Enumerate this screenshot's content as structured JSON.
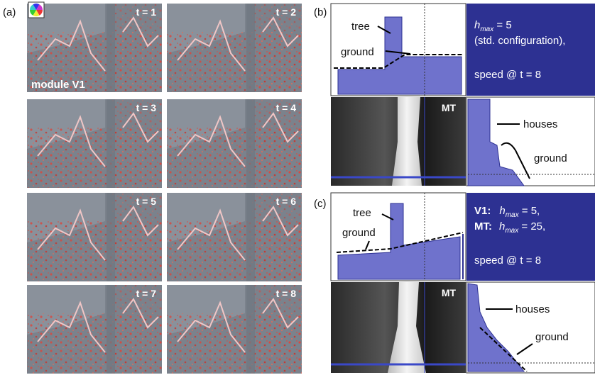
{
  "panel_a": {
    "label": "(a)",
    "frames": [
      "t = 1",
      "t = 2",
      "t = 3",
      "t = 4",
      "t = 5",
      "t = 6",
      "t = 7",
      "t = 8"
    ],
    "module_label": "module V1"
  },
  "panel_b": {
    "label": "(b)",
    "tree": "tree",
    "ground": "ground",
    "info": {
      "var": "h",
      "sub": "max",
      "value": " = 5",
      "config": "(std. configuration),",
      "speed": "speed @ t = 8"
    },
    "mt_label": "MT",
    "houses": "houses",
    "side_ground": "ground"
  },
  "panel_c": {
    "label": "(c)",
    "tree": "tree",
    "ground": "ground",
    "info": {
      "v1": "V1:",
      "v1_var": "h",
      "v1_sub": "max",
      "v1_value": " = 5,",
      "mt": "MT:",
      "mt_var": "h",
      "mt_sub": "max",
      "mt_value": " = 25,",
      "speed": "speed @ t = 8"
    },
    "mt_label": "MT",
    "houses": "houses",
    "side_ground": "ground"
  }
}
